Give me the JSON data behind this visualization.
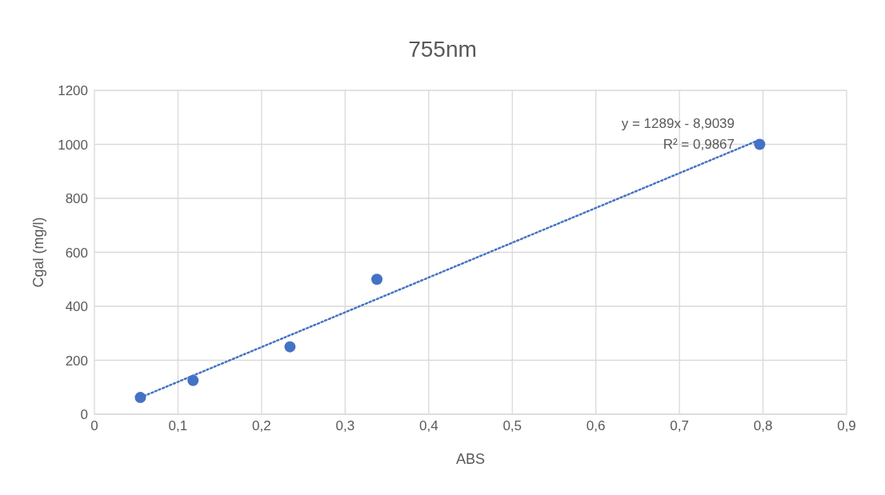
{
  "chart_data": {
    "type": "scatter",
    "title": "755nm",
    "xlabel": "ABS",
    "ylabel": "Cgal (mg/l)",
    "x": [
      0.055,
      0.118,
      0.234,
      0.338,
      0.796
    ],
    "series": [
      {
        "color": "#4472c4",
        "values": [
          62,
          125,
          250,
          500,
          1000
        ],
        "marker": "circle"
      },
      {
        "type": "line",
        "color": "#4472c4",
        "x": [
          0.055,
          0.796
        ],
        "values": [
          62,
          1017
        ],
        "line_style": "dotted",
        "marker": "none"
      }
    ],
    "xlim": [
      0,
      0.9
    ],
    "xticks": [
      0,
      {
        "value": 0.1,
        "label": "0,1"
      },
      {
        "value": 0.2,
        "label": "0,2"
      },
      {
        "value": 0.3,
        "label": "0,3"
      },
      {
        "value": 0.4,
        "label": "0,4"
      },
      {
        "value": 0.5,
        "label": "0,5"
      },
      {
        "value": 0.6,
        "label": "0,6"
      },
      {
        "value": 0.7,
        "label": "0,7"
      },
      {
        "value": 0.8,
        "label": "0,8"
      },
      {
        "value": 0.9,
        "label": "0,9"
      }
    ],
    "ylim": [
      0,
      1200
    ],
    "yticks": [
      0,
      200,
      400,
      600,
      800,
      1000,
      1200
    ],
    "grid": true,
    "annotations": [
      "y = 1289x - 8,9039",
      "R² = 0,9867"
    ]
  }
}
